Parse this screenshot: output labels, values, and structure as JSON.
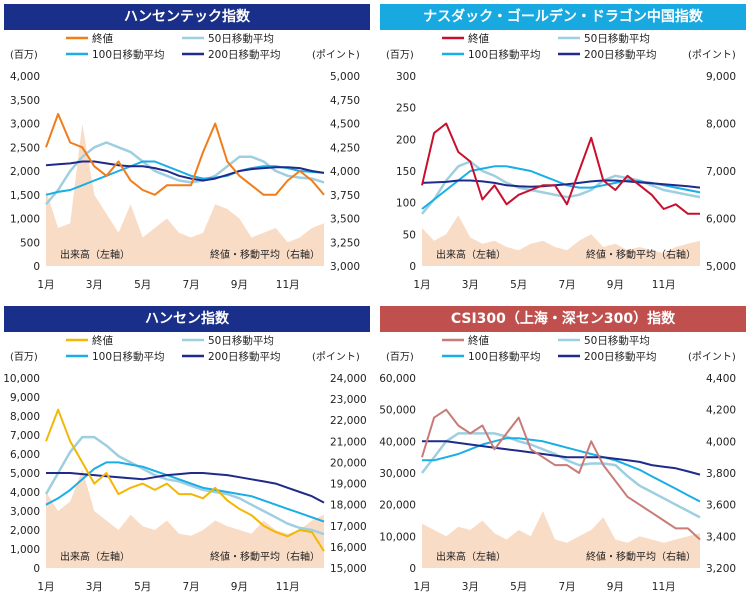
{
  "charts": [
    {
      "title": "ハンセンテック指数",
      "header_color": "#1a2f8a",
      "close_color": "#f07d1a",
      "left_unit": "(百万)",
      "right_unit": "(ポイント)",
      "left_ticks": [
        "4,000",
        "3,500",
        "3,000",
        "2,500",
        "2,000",
        "1,500",
        "1,000",
        "500",
        "0"
      ],
      "right_ticks": [
        "5,000",
        "4,750",
        "4,500",
        "4,250",
        "4,000",
        "3,750",
        "3,500",
        "3,250",
        "3,000"
      ],
      "volume_label": "出来高（左軸）",
      "price_label": "終値・移動平均（右軸）"
    },
    {
      "title": "ナスダック・ゴールデン・ドラゴン中国指数",
      "header_color": "#18a9e1",
      "close_color": "#c8102e",
      "left_unit": "(百万)",
      "right_unit": "(ポイント)",
      "left_ticks": [
        "300",
        "250",
        "200",
        "150",
        "100",
        "50",
        "0"
      ],
      "right_ticks": [
        "9,000",
        "8,000",
        "7,000",
        "6,000",
        "5,000"
      ],
      "volume_label": "出来高（左軸）",
      "price_label": "終値・移動平均（右軸）"
    },
    {
      "title": "ハンセン指数",
      "header_color": "#1a2f8a",
      "close_color": "#f2b705",
      "left_unit": "(百万)",
      "right_unit": "(ポイント)",
      "left_ticks": [
        "10,000",
        "9,000",
        "8,000",
        "7,000",
        "6,000",
        "5,000",
        "4,000",
        "3,000",
        "2,000",
        "1,000",
        "0"
      ],
      "right_ticks": [
        "24,000",
        "23,000",
        "22,000",
        "21,000",
        "20,000",
        "19,000",
        "18,000",
        "17,000",
        "16,000",
        "15,000"
      ],
      "volume_label": "出来高（左軸）",
      "price_label": "終値・移動平均（右軸）"
    },
    {
      "title": "CSI300（上海・深セン300）指数",
      "header_color": "#c0504d",
      "close_color": "#c97b78",
      "left_unit": "(百万)",
      "right_unit": "(ポイント)",
      "left_ticks": [
        "60,000",
        "50,000",
        "40,000",
        "30,000",
        "20,000",
        "10,000",
        "0"
      ],
      "right_ticks": [
        "4,400",
        "4,200",
        "4,000",
        "3,800",
        "3,600",
        "3,400",
        "3,200"
      ],
      "volume_label": "出来高（左軸）",
      "price_label": "終値・移動平均（右軸）"
    }
  ],
  "legend": {
    "close": "終値",
    "ma50": "50日移動平均",
    "ma100": "100日移動平均",
    "ma200": "200日移動平均"
  },
  "colors": {
    "ma50": "#9ecfe0",
    "ma100": "#19aee6",
    "ma200": "#1f2a8a",
    "volume_fill": "#f9dcc6"
  },
  "x_ticks": [
    "1月",
    "3月",
    "5月",
    "7月",
    "9月",
    "11月"
  ],
  "chart_data": [
    {
      "type": "line",
      "title": "ハンセンテック指数",
      "x_months": [
        1,
        1.5,
        2,
        2.5,
        3,
        3.5,
        4,
        4.5,
        5,
        5.5,
        6,
        6.5,
        7,
        7.5,
        8,
        8.5,
        9,
        9.5,
        10,
        10.5,
        11,
        11.5,
        12,
        12.5
      ],
      "right_ylim": [
        3000,
        5000
      ],
      "left_ylim": [
        0,
        4000
      ],
      "series": [
        {
          "name": "終値",
          "values": [
            4250,
            4600,
            4300,
            4250,
            4050,
            3950,
            4100,
            3900,
            3800,
            3750,
            3850,
            3850,
            3850,
            4200,
            4500,
            4100,
            3950,
            3850,
            3750,
            3750,
            3900,
            4000,
            3900,
            3750
          ]
        },
        {
          "name": "50日移動平均",
          "values": [
            3650,
            3800,
            4000,
            4150,
            4250,
            4300,
            4250,
            4200,
            4100,
            4000,
            3950,
            3900,
            3880,
            3900,
            3950,
            4050,
            4150,
            4150,
            4100,
            4000,
            3950,
            3930,
            3920,
            3880
          ]
        },
        {
          "name": "100日移動平均",
          "values": [
            3750,
            3780,
            3800,
            3850,
            3900,
            3950,
            4000,
            4050,
            4100,
            4100,
            4050,
            4000,
            3950,
            3920,
            3930,
            3950,
            4000,
            4030,
            4050,
            4050,
            4030,
            4000,
            3990,
            3980
          ]
        },
        {
          "name": "200日移動平均",
          "values": [
            4060,
            4070,
            4080,
            4100,
            4100,
            4080,
            4060,
            4050,
            4050,
            4030,
            4000,
            3950,
            3920,
            3900,
            3920,
            3960,
            4000,
            4020,
            4030,
            4040,
            4040,
            4030,
            4000,
            3980
          ]
        }
      ],
      "volume": [
        1600,
        800,
        900,
        3000,
        1500,
        1100,
        700,
        1300,
        600,
        800,
        1000,
        700,
        600,
        700,
        1300,
        1200,
        1000,
        600,
        700,
        800,
        500,
        600,
        800,
        900
      ]
    },
    {
      "type": "line",
      "title": "ナスダック・ゴールデン・ドラゴン中国指数",
      "x_months": [
        1,
        1.5,
        2,
        2.5,
        3,
        3.5,
        4,
        4.5,
        5,
        5.5,
        6,
        6.5,
        7,
        7.5,
        8,
        8.5,
        9,
        9.5,
        10,
        10.5,
        11,
        11.5,
        12,
        12.5
      ],
      "right_ylim": [
        5000,
        9000
      ],
      "left_ylim": [
        0,
        300
      ],
      "series": [
        {
          "name": "終値",
          "values": [
            6700,
            7800,
            8000,
            7400,
            7200,
            6400,
            6700,
            6300,
            6500,
            6600,
            6700,
            6700,
            6300,
            7000,
            7700,
            6800,
            6600,
            6900,
            6700,
            6500,
            6200,
            6300,
            6100,
            6100
          ]
        },
        {
          "name": "50日移動平均",
          "values": [
            6100,
            6400,
            6800,
            7100,
            7200,
            7000,
            6900,
            6750,
            6650,
            6600,
            6550,
            6500,
            6450,
            6500,
            6600,
            6800,
            6900,
            6850,
            6800,
            6700,
            6600,
            6550,
            6500,
            6450
          ]
        },
        {
          "name": "100日移動平均",
          "values": [
            6200,
            6400,
            6600,
            6800,
            7000,
            7050,
            7100,
            7100,
            7050,
            7000,
            6900,
            6800,
            6700,
            6650,
            6650,
            6700,
            6750,
            6800,
            6780,
            6750,
            6700,
            6650,
            6600,
            6550
          ]
        },
        {
          "name": "200日移動平均",
          "values": [
            6750,
            6760,
            6770,
            6800,
            6800,
            6780,
            6750,
            6700,
            6680,
            6670,
            6680,
            6700,
            6720,
            6750,
            6780,
            6800,
            6800,
            6780,
            6760,
            6740,
            6720,
            6700,
            6680,
            6650
          ]
        }
      ],
      "volume": [
        60,
        40,
        50,
        80,
        45,
        35,
        40,
        30,
        25,
        35,
        40,
        30,
        25,
        40,
        50,
        30,
        35,
        25,
        30,
        25,
        20,
        30,
        35,
        40
      ]
    },
    {
      "type": "line",
      "title": "ハンセン指数",
      "x_months": [
        1,
        1.5,
        2,
        2.5,
        3,
        3.5,
        4,
        4.5,
        5,
        5.5,
        6,
        6.5,
        7,
        7.5,
        8,
        8.5,
        9,
        9.5,
        10,
        10.5,
        11,
        11.5,
        12,
        12.5
      ],
      "right_ylim": [
        15000,
        24000
      ],
      "left_ylim": [
        0,
        10000
      ],
      "series": [
        {
          "name": "終値",
          "values": [
            21000,
            22500,
            21000,
            20000,
            19000,
            19500,
            18500,
            18800,
            19000,
            18700,
            19000,
            18500,
            18500,
            18300,
            18800,
            18200,
            17800,
            17500,
            17000,
            16700,
            16500,
            16800,
            16700,
            15800
          ]
        },
        {
          "name": "50日移動平均",
          "values": [
            18500,
            19500,
            20500,
            21200,
            21200,
            20800,
            20300,
            20000,
            19700,
            19400,
            19200,
            19100,
            18900,
            18700,
            18600,
            18500,
            18300,
            18000,
            17700,
            17400,
            17100,
            16900,
            16800,
            16600
          ]
        },
        {
          "name": "100日移動平均",
          "values": [
            18000,
            18300,
            18700,
            19200,
            19700,
            20000,
            20000,
            19900,
            19800,
            19600,
            19400,
            19200,
            19000,
            18800,
            18700,
            18600,
            18500,
            18400,
            18200,
            18000,
            17800,
            17600,
            17400,
            17200
          ]
        },
        {
          "name": "200日移動平均",
          "values": [
            19500,
            19500,
            19500,
            19450,
            19400,
            19350,
            19300,
            19250,
            19200,
            19300,
            19400,
            19450,
            19500,
            19500,
            19450,
            19400,
            19300,
            19200,
            19100,
            19000,
            18800,
            18600,
            18400,
            18100
          ]
        }
      ],
      "volume": [
        4000,
        3000,
        3500,
        5200,
        3000,
        2500,
        2000,
        2800,
        2200,
        2000,
        2500,
        1800,
        1700,
        2000,
        2500,
        2200,
        2000,
        1800,
        2500,
        2000,
        1800,
        2000,
        2500,
        2800
      ]
    },
    {
      "type": "line",
      "title": "CSI300（上海・深セン300）指数",
      "x_months": [
        1,
        1.5,
        2,
        2.5,
        3,
        3.5,
        4,
        4.5,
        5,
        5.5,
        6,
        6.5,
        7,
        7.5,
        8,
        8.5,
        9,
        9.5,
        10,
        10.5,
        11,
        11.5,
        12,
        12.5
      ],
      "right_ylim": [
        3200,
        4400
      ],
      "left_ylim": [
        0,
        60000
      ],
      "series": [
        {
          "name": "終値",
          "values": [
            3900,
            4150,
            4200,
            4100,
            4050,
            4100,
            3950,
            4050,
            4150,
            3950,
            3900,
            3850,
            3850,
            3800,
            4000,
            3850,
            3750,
            3650,
            3600,
            3550,
            3500,
            3450,
            3450,
            3380
          ]
        },
        {
          "name": "50日移動平均",
          "values": [
            3800,
            3900,
            4000,
            4050,
            4050,
            4050,
            4050,
            4030,
            4000,
            3980,
            3950,
            3920,
            3880,
            3850,
            3860,
            3860,
            3850,
            3780,
            3720,
            3680,
            3640,
            3600,
            3560,
            3520
          ]
        },
        {
          "name": "100日移動平均",
          "values": [
            3880,
            3880,
            3900,
            3920,
            3950,
            3980,
            4000,
            4020,
            4020,
            4010,
            4000,
            3980,
            3960,
            3940,
            3920,
            3900,
            3880,
            3850,
            3820,
            3780,
            3740,
            3700,
            3660,
            3620
          ]
        },
        {
          "name": "200日移動平均",
          "values": [
            4000,
            4000,
            4000,
            3990,
            3980,
            3970,
            3960,
            3950,
            3940,
            3930,
            3920,
            3910,
            3900,
            3900,
            3900,
            3900,
            3890,
            3880,
            3870,
            3850,
            3840,
            3830,
            3810,
            3790
          ]
        }
      ],
      "volume": [
        14000,
        12000,
        10000,
        13000,
        12000,
        15000,
        11000,
        9000,
        12000,
        10000,
        18000,
        9000,
        8000,
        10000,
        12000,
        16000,
        9000,
        8000,
        10000,
        9000,
        8000,
        9000,
        10000,
        11000
      ]
    }
  ]
}
